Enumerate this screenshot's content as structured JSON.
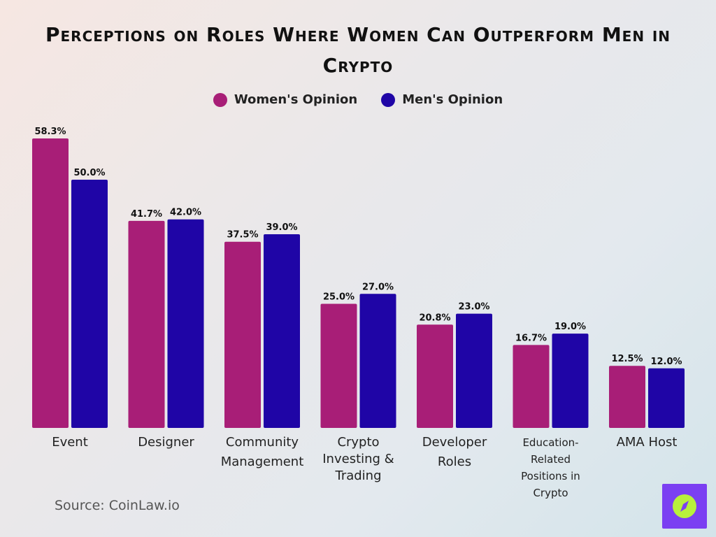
{
  "chart_data": {
    "type": "bar",
    "title": "Perceptions on Roles Where Women Can Outperform Men in Crypto",
    "categories": [
      [
        "Event"
      ],
      [
        "Designer"
      ],
      [
        "Community",
        "Management"
      ],
      [
        "Crypto",
        "Investing &",
        "Trading"
      ],
      [
        "Developer",
        "Roles"
      ],
      [
        "Education-",
        "Related",
        "Positions in",
        "Crypto"
      ],
      [
        "AMA Host"
      ]
    ],
    "series": [
      {
        "name": "Women's Opinion",
        "color": "#a81e77",
        "values": [
          58.3,
          41.7,
          37.5,
          25.0,
          20.8,
          16.7,
          12.5
        ]
      },
      {
        "name": "Men's Opinion",
        "color": "#1f05a6",
        "values": [
          50.0,
          42.0,
          39.0,
          27.0,
          23.0,
          19.0,
          12.0
        ]
      }
    ],
    "value_suffix": "%",
    "ylim": [
      0,
      60
    ],
    "xlabel": "",
    "ylabel": "",
    "grid": false,
    "legend_position": "top-center"
  },
  "footer": {
    "source": "Source: CoinLaw.io",
    "badge_icon": "compass-icon"
  }
}
